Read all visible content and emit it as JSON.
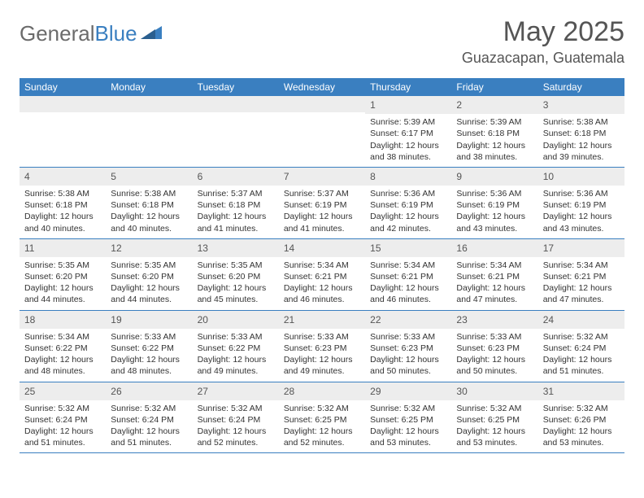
{
  "logo": {
    "text_gray": "General",
    "text_blue": "Blue"
  },
  "title": "May 2025",
  "location": "Guazacapan, Guatemala",
  "colors": {
    "header_bg": "#3a7fc0",
    "daynum_bg": "#ededed",
    "text": "#333333",
    "title_text": "#555555"
  },
  "weekdays": [
    "Sunday",
    "Monday",
    "Tuesday",
    "Wednesday",
    "Thursday",
    "Friday",
    "Saturday"
  ],
  "weeks": [
    [
      {
        "num": "",
        "sunrise": "",
        "sunset": "",
        "daylight": ""
      },
      {
        "num": "",
        "sunrise": "",
        "sunset": "",
        "daylight": ""
      },
      {
        "num": "",
        "sunrise": "",
        "sunset": "",
        "daylight": ""
      },
      {
        "num": "",
        "sunrise": "",
        "sunset": "",
        "daylight": ""
      },
      {
        "num": "1",
        "sunrise": "Sunrise: 5:39 AM",
        "sunset": "Sunset: 6:17 PM",
        "daylight": "Daylight: 12 hours and 38 minutes."
      },
      {
        "num": "2",
        "sunrise": "Sunrise: 5:39 AM",
        "sunset": "Sunset: 6:18 PM",
        "daylight": "Daylight: 12 hours and 38 minutes."
      },
      {
        "num": "3",
        "sunrise": "Sunrise: 5:38 AM",
        "sunset": "Sunset: 6:18 PM",
        "daylight": "Daylight: 12 hours and 39 minutes."
      }
    ],
    [
      {
        "num": "4",
        "sunrise": "Sunrise: 5:38 AM",
        "sunset": "Sunset: 6:18 PM",
        "daylight": "Daylight: 12 hours and 40 minutes."
      },
      {
        "num": "5",
        "sunrise": "Sunrise: 5:38 AM",
        "sunset": "Sunset: 6:18 PM",
        "daylight": "Daylight: 12 hours and 40 minutes."
      },
      {
        "num": "6",
        "sunrise": "Sunrise: 5:37 AM",
        "sunset": "Sunset: 6:18 PM",
        "daylight": "Daylight: 12 hours and 41 minutes."
      },
      {
        "num": "7",
        "sunrise": "Sunrise: 5:37 AM",
        "sunset": "Sunset: 6:19 PM",
        "daylight": "Daylight: 12 hours and 41 minutes."
      },
      {
        "num": "8",
        "sunrise": "Sunrise: 5:36 AM",
        "sunset": "Sunset: 6:19 PM",
        "daylight": "Daylight: 12 hours and 42 minutes."
      },
      {
        "num": "9",
        "sunrise": "Sunrise: 5:36 AM",
        "sunset": "Sunset: 6:19 PM",
        "daylight": "Daylight: 12 hours and 43 minutes."
      },
      {
        "num": "10",
        "sunrise": "Sunrise: 5:36 AM",
        "sunset": "Sunset: 6:19 PM",
        "daylight": "Daylight: 12 hours and 43 minutes."
      }
    ],
    [
      {
        "num": "11",
        "sunrise": "Sunrise: 5:35 AM",
        "sunset": "Sunset: 6:20 PM",
        "daylight": "Daylight: 12 hours and 44 minutes."
      },
      {
        "num": "12",
        "sunrise": "Sunrise: 5:35 AM",
        "sunset": "Sunset: 6:20 PM",
        "daylight": "Daylight: 12 hours and 44 minutes."
      },
      {
        "num": "13",
        "sunrise": "Sunrise: 5:35 AM",
        "sunset": "Sunset: 6:20 PM",
        "daylight": "Daylight: 12 hours and 45 minutes."
      },
      {
        "num": "14",
        "sunrise": "Sunrise: 5:34 AM",
        "sunset": "Sunset: 6:21 PM",
        "daylight": "Daylight: 12 hours and 46 minutes."
      },
      {
        "num": "15",
        "sunrise": "Sunrise: 5:34 AM",
        "sunset": "Sunset: 6:21 PM",
        "daylight": "Daylight: 12 hours and 46 minutes."
      },
      {
        "num": "16",
        "sunrise": "Sunrise: 5:34 AM",
        "sunset": "Sunset: 6:21 PM",
        "daylight": "Daylight: 12 hours and 47 minutes."
      },
      {
        "num": "17",
        "sunrise": "Sunrise: 5:34 AM",
        "sunset": "Sunset: 6:21 PM",
        "daylight": "Daylight: 12 hours and 47 minutes."
      }
    ],
    [
      {
        "num": "18",
        "sunrise": "Sunrise: 5:34 AM",
        "sunset": "Sunset: 6:22 PM",
        "daylight": "Daylight: 12 hours and 48 minutes."
      },
      {
        "num": "19",
        "sunrise": "Sunrise: 5:33 AM",
        "sunset": "Sunset: 6:22 PM",
        "daylight": "Daylight: 12 hours and 48 minutes."
      },
      {
        "num": "20",
        "sunrise": "Sunrise: 5:33 AM",
        "sunset": "Sunset: 6:22 PM",
        "daylight": "Daylight: 12 hours and 49 minutes."
      },
      {
        "num": "21",
        "sunrise": "Sunrise: 5:33 AM",
        "sunset": "Sunset: 6:23 PM",
        "daylight": "Daylight: 12 hours and 49 minutes."
      },
      {
        "num": "22",
        "sunrise": "Sunrise: 5:33 AM",
        "sunset": "Sunset: 6:23 PM",
        "daylight": "Daylight: 12 hours and 50 minutes."
      },
      {
        "num": "23",
        "sunrise": "Sunrise: 5:33 AM",
        "sunset": "Sunset: 6:23 PM",
        "daylight": "Daylight: 12 hours and 50 minutes."
      },
      {
        "num": "24",
        "sunrise": "Sunrise: 5:32 AM",
        "sunset": "Sunset: 6:24 PM",
        "daylight": "Daylight: 12 hours and 51 minutes."
      }
    ],
    [
      {
        "num": "25",
        "sunrise": "Sunrise: 5:32 AM",
        "sunset": "Sunset: 6:24 PM",
        "daylight": "Daylight: 12 hours and 51 minutes."
      },
      {
        "num": "26",
        "sunrise": "Sunrise: 5:32 AM",
        "sunset": "Sunset: 6:24 PM",
        "daylight": "Daylight: 12 hours and 51 minutes."
      },
      {
        "num": "27",
        "sunrise": "Sunrise: 5:32 AM",
        "sunset": "Sunset: 6:24 PM",
        "daylight": "Daylight: 12 hours and 52 minutes."
      },
      {
        "num": "28",
        "sunrise": "Sunrise: 5:32 AM",
        "sunset": "Sunset: 6:25 PM",
        "daylight": "Daylight: 12 hours and 52 minutes."
      },
      {
        "num": "29",
        "sunrise": "Sunrise: 5:32 AM",
        "sunset": "Sunset: 6:25 PM",
        "daylight": "Daylight: 12 hours and 53 minutes."
      },
      {
        "num": "30",
        "sunrise": "Sunrise: 5:32 AM",
        "sunset": "Sunset: 6:25 PM",
        "daylight": "Daylight: 12 hours and 53 minutes."
      },
      {
        "num": "31",
        "sunrise": "Sunrise: 5:32 AM",
        "sunset": "Sunset: 6:26 PM",
        "daylight": "Daylight: 12 hours and 53 minutes."
      }
    ]
  ]
}
